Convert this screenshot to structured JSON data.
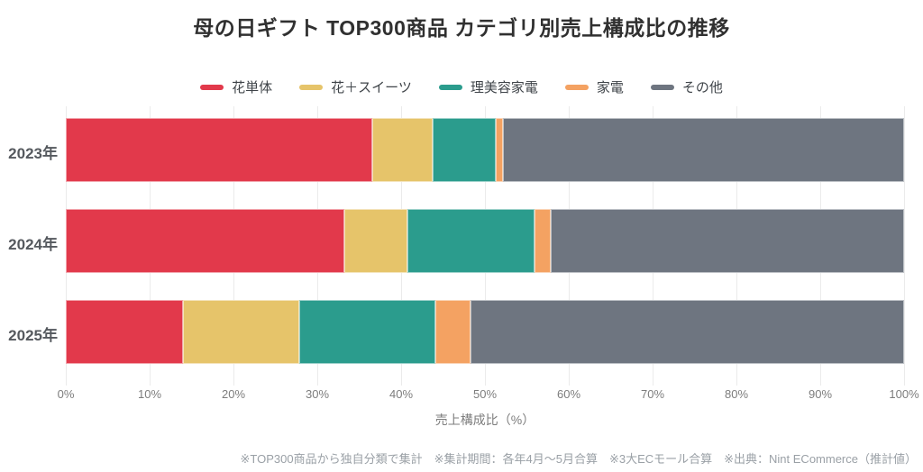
{
  "title": "母の日ギフト TOP300商品 カテゴリ別売上構成比の推移",
  "footnote": "※TOP300商品から独自分類で集計　※集計期間：各年4月～5月合算　※3大ECモール合算　※出典：Nint ECommerce（推計値）",
  "chart_data": {
    "type": "bar",
    "orientation": "horizontal",
    "stacked": true,
    "title": "母の日ギフト TOP300商品 カテゴリ別売上構成比の推移",
    "categories": [
      "2023年",
      "2024年",
      "2025年"
    ],
    "series": [
      {
        "name": "花単体",
        "color": "#e2394b",
        "values": [
          36.6,
          33.2,
          14.0
        ]
      },
      {
        "name": "花＋スイーツ",
        "color": "#e6c46a",
        "values": [
          7.2,
          7.6,
          13.9
        ]
      },
      {
        "name": "理美容家電",
        "color": "#2b9c8d",
        "values": [
          7.5,
          15.1,
          16.2
        ]
      },
      {
        "name": "家電",
        "color": "#f4a262",
        "values": [
          0.9,
          1.9,
          4.2
        ]
      },
      {
        "name": "その他",
        "color": "#6e7580",
        "values": [
          47.8,
          42.2,
          51.7
        ]
      }
    ],
    "xlabel": "売上構成比（%）",
    "xlim": [
      0,
      100
    ],
    "xticks": [
      "0%",
      "10%",
      "20%",
      "30%",
      "40%",
      "50%",
      "60%",
      "70%",
      "80%",
      "90%",
      "100%"
    ],
    "grid": true,
    "legend_position": "top",
    "background": "#ffffff",
    "gridline_color": "#ebebeb"
  }
}
